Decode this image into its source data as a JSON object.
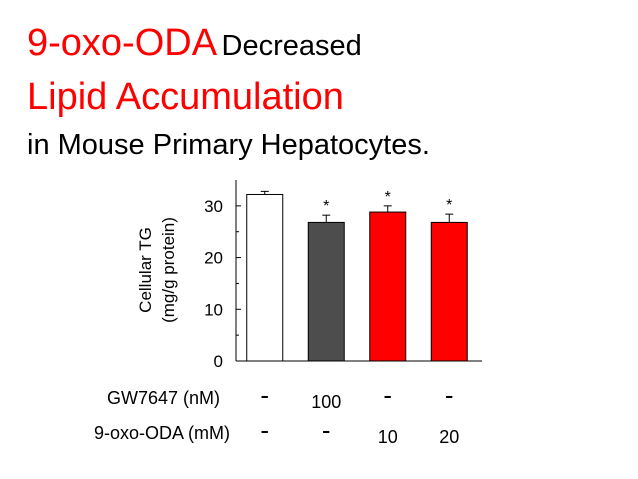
{
  "title": {
    "line1_highlight": "9-oxo-ODA",
    "line1_rest": "Decreased",
    "line2": "Lipid Accumulation",
    "line3": "in Mouse Primary Hepatocytes."
  },
  "colors": {
    "accent": "#ff0000",
    "dark_bar": "#4d4d4d",
    "control_bar": "#ffffff",
    "text": "#000000"
  },
  "chart_data": {
    "type": "bar",
    "ylabel_line1": "Cellular TG",
    "ylabel_line2": "(mg/g protein)",
    "ylim": [
      0,
      35
    ],
    "yticks": [
      0,
      10,
      20,
      30
    ],
    "bars": [
      {
        "value": 32.2,
        "error": 0.6,
        "color": "#ffffff",
        "significance": ""
      },
      {
        "value": 26.8,
        "error": 1.4,
        "color": "#4d4d4d",
        "significance": "*"
      },
      {
        "value": 28.8,
        "error": 1.2,
        "color": "#ff0000",
        "significance": "*"
      },
      {
        "value": 26.8,
        "error": 1.6,
        "color": "#ff0000",
        "significance": "*"
      }
    ],
    "conditions": [
      {
        "label": "GW7647 (nM)",
        "values": [
          "-",
          "100",
          "-",
          "-"
        ]
      },
      {
        "label": "9-oxo-ODA (mM)",
        "values": [
          "-",
          "-",
          "10",
          "20"
        ]
      }
    ]
  }
}
